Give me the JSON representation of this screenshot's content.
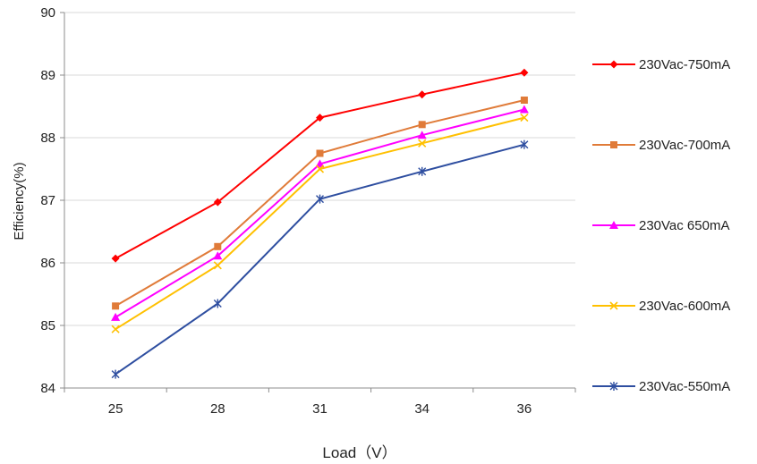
{
  "chart_data": {
    "type": "line",
    "title": "",
    "xlabel": "Load（V）",
    "ylabel": "Efficiency(%)",
    "categories": [
      "25",
      "28",
      "31",
      "34",
      "36"
    ],
    "ylim": [
      84,
      90
    ],
    "yticks": [
      "84",
      "85",
      "86",
      "87",
      "88",
      "89",
      "90"
    ],
    "grid": true,
    "legend_position": "right",
    "series": [
      {
        "name": "230Vac-750mA",
        "color": "#ff0000",
        "marker": "diamond",
        "values": [
          86.07,
          86.97,
          88.32,
          88.69,
          89.04
        ]
      },
      {
        "name": "230Vac-700mA",
        "color": "#e07b39",
        "marker": "square",
        "values": [
          85.31,
          86.26,
          87.75,
          88.21,
          88.6
        ]
      },
      {
        "name": "230Vac 650mA",
        "color": "#ff00ff",
        "marker": "triangle",
        "values": [
          85.13,
          86.11,
          87.58,
          88.04,
          88.45
        ]
      },
      {
        "name": "230Vac-600mA",
        "color": "#ffc000",
        "marker": "x",
        "values": [
          84.94,
          85.96,
          87.5,
          87.91,
          88.32
        ]
      },
      {
        "name": "230Vac-550mA",
        "color": "#2e4ea0",
        "marker": "star",
        "values": [
          84.22,
          85.35,
          87.02,
          87.46,
          87.89
        ]
      }
    ]
  }
}
